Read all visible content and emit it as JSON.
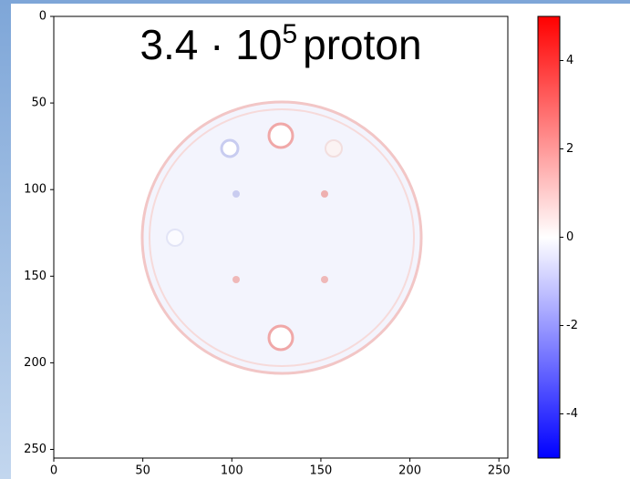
{
  "chart_data": {
    "type": "image",
    "title": "3.4 · 10",
    "title_exponent": "5",
    "title_suffix": "proton",
    "xlim": [
      0,
      255
    ],
    "xticks": [
      0,
      50,
      100,
      150,
      200,
      250
    ],
    "ylim": [
      255,
      0
    ],
    "yticks": [
      0,
      50,
      100,
      150,
      200,
      250
    ],
    "clim": [
      -5,
      5
    ],
    "cticks": [
      -4,
      -2,
      0,
      2,
      4
    ],
    "colormap": [
      "#0000ff",
      "#ffffff",
      "#ff0000"
    ]
  }
}
